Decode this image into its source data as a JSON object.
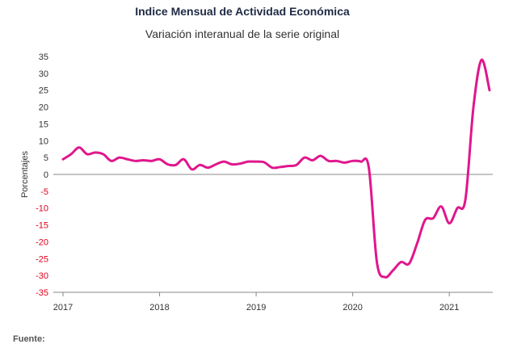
{
  "colors": {
    "line": "#e0168c",
    "negative_ticks": "#e0001b",
    "positive_ticks": "#333333",
    "axis": "#888888"
  },
  "footer": "Fuente:",
  "chart_data": {
    "type": "line",
    "title": "Indice Mensual de  Actividad Económica",
    "subtitle": "Variación interanual de la serie original",
    "xlabel": "",
    "ylabel": "Porcentajes",
    "ylim": [
      -35,
      35
    ],
    "yticks": [
      35,
      30,
      25,
      20,
      15,
      10,
      5,
      0,
      -5,
      -10,
      -15,
      -20,
      -25,
      -30,
      -35
    ],
    "xlim": [
      "2017-01",
      "2021-06"
    ],
    "xticks": [
      "2017",
      "2018",
      "2019",
      "2020",
      "2021"
    ],
    "grid": false,
    "series": [
      {
        "x": [
          "2017-01",
          "2017-02",
          "2017-03",
          "2017-04",
          "2017-05",
          "2017-06",
          "2017-07",
          "2017-08",
          "2017-09",
          "2017-10",
          "2017-11",
          "2017-12",
          "2018-01",
          "2018-02",
          "2018-03",
          "2018-04",
          "2018-05",
          "2018-06",
          "2018-07",
          "2018-08",
          "2018-09",
          "2018-10",
          "2018-11",
          "2018-12",
          "2019-01",
          "2019-02",
          "2019-03",
          "2019-04",
          "2019-05",
          "2019-06",
          "2019-07",
          "2019-08",
          "2019-09",
          "2019-10",
          "2019-11",
          "2019-12",
          "2020-01",
          "2020-02",
          "2020-03",
          "2020-04",
          "2020-05",
          "2020-06",
          "2020-07",
          "2020-08",
          "2020-09",
          "2020-10",
          "2020-11",
          "2020-12",
          "2021-01",
          "2021-02",
          "2021-03",
          "2021-04",
          "2021-05",
          "2021-06"
        ],
        "values": [
          4.5,
          6.0,
          8.0,
          6.0,
          6.5,
          6.0,
          4.0,
          5.0,
          4.5,
          4.0,
          4.2,
          4.0,
          4.5,
          3.0,
          2.8,
          4.5,
          1.5,
          2.8,
          2.0,
          3.0,
          3.8,
          3.0,
          3.2,
          3.8,
          3.8,
          3.6,
          2.0,
          2.2,
          2.5,
          2.8,
          5.0,
          4.2,
          5.5,
          4.0,
          4.0,
          3.5,
          4.0,
          3.8,
          2.0,
          -26.0,
          -30.5,
          -28.5,
          -26.0,
          -26.5,
          -20.5,
          -13.5,
          -13.0,
          -9.5,
          -14.5,
          -10.0,
          -7.5,
          20.0,
          34.0,
          25.0
        ]
      }
    ]
  }
}
